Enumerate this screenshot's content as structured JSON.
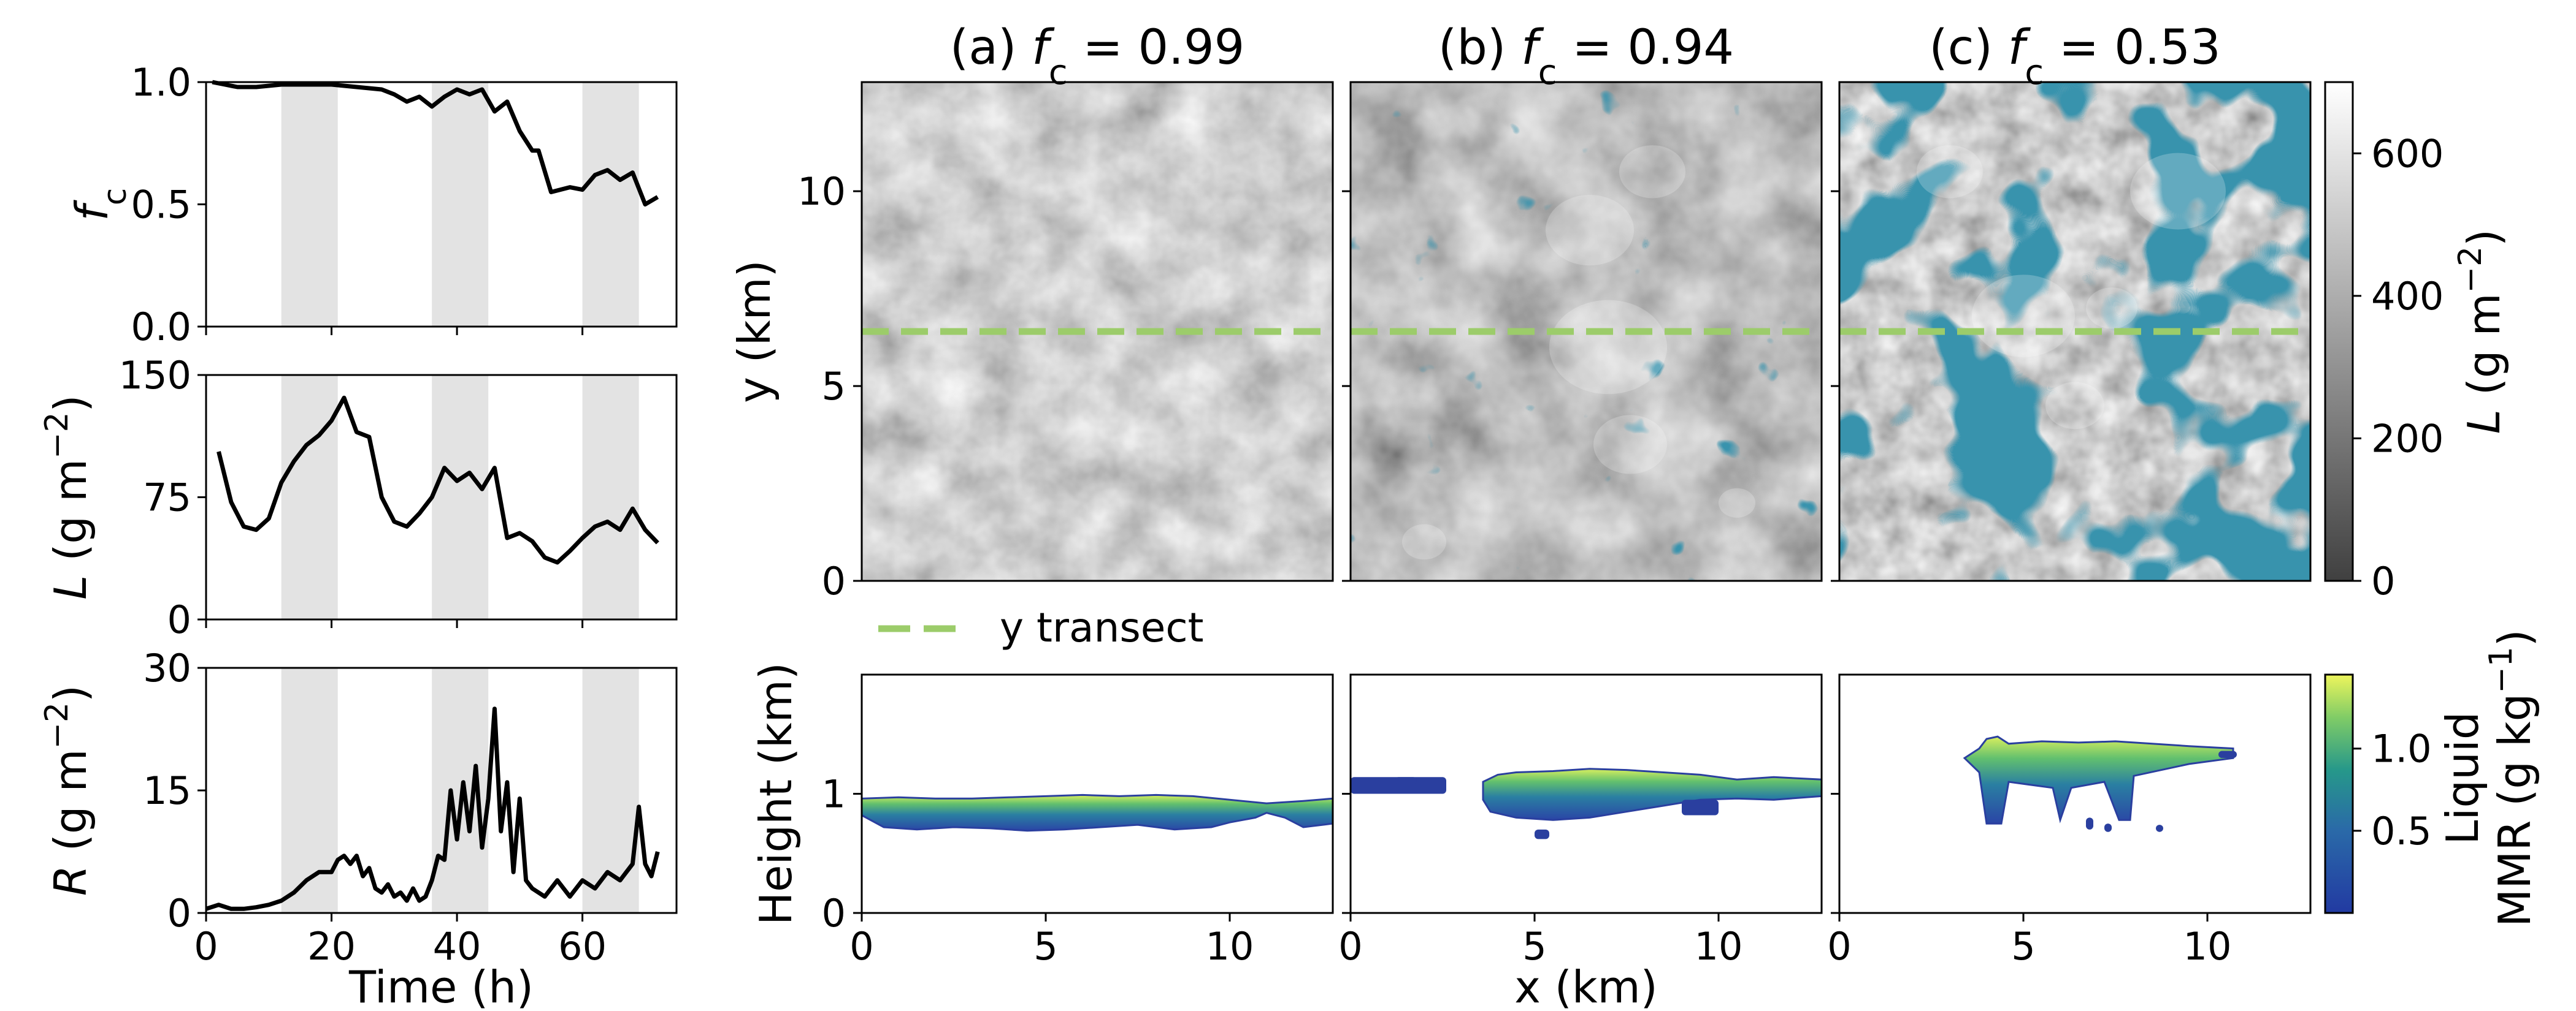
{
  "colors": {
    "line": "#000000",
    "shade": "#e3e3e3",
    "clear_sky": "#0a4a6b",
    "transect": "#9ccc6a",
    "liquid_low": "#2a3f9f",
    "liquid_mid": "#23908c",
    "liquid_high": "#e8f45a"
  },
  "chart_data": [
    {
      "type": "line",
      "panel": "time-series-fc",
      "ylabel": "fc",
      "ylim": [
        0,
        1.0
      ],
      "yticks": [
        "0.0",
        "0.5",
        "1.0"
      ],
      "xlim": [
        0,
        75
      ],
      "shaded_intervals": [
        [
          12,
          21
        ],
        [
          36,
          45
        ],
        [
          60,
          69
        ]
      ],
      "series": [
        {
          "x": [
            1,
            3,
            5,
            8,
            12,
            16,
            20,
            24,
            28,
            30,
            32,
            34,
            36,
            38,
            40,
            42,
            44,
            46,
            48,
            50,
            52,
            53,
            55,
            58,
            60,
            62,
            64,
            66,
            68,
            70,
            72
          ],
          "y": [
            1.0,
            0.99,
            0.98,
            0.98,
            0.99,
            0.99,
            0.99,
            0.98,
            0.97,
            0.95,
            0.92,
            0.94,
            0.9,
            0.94,
            0.97,
            0.95,
            0.97,
            0.88,
            0.92,
            0.8,
            0.72,
            0.72,
            0.55,
            0.57,
            0.56,
            0.62,
            0.64,
            0.6,
            0.63,
            0.5,
            0.53
          ]
        }
      ]
    },
    {
      "type": "line",
      "panel": "time-series-L",
      "ylabel": "L (g m⁻²)",
      "ylim": [
        0,
        150
      ],
      "yticks": [
        "0",
        "75",
        "150"
      ],
      "xlim": [
        0,
        75
      ],
      "shaded_intervals": [
        [
          12,
          21
        ],
        [
          36,
          45
        ],
        [
          60,
          69
        ]
      ],
      "series": [
        {
          "x": [
            2,
            4,
            6,
            8,
            10,
            12,
            14,
            16,
            18,
            20,
            22,
            24,
            26,
            28,
            30,
            32,
            34,
            36,
            38,
            40,
            42,
            44,
            46,
            48,
            50,
            52,
            54,
            56,
            58,
            60,
            62,
            64,
            66,
            68,
            70,
            72
          ],
          "y": [
            103,
            72,
            57,
            55,
            62,
            84,
            97,
            107,
            113,
            122,
            136,
            115,
            112,
            75,
            60,
            57,
            65,
            75,
            93,
            85,
            90,
            80,
            93,
            50,
            53,
            48,
            38,
            35,
            42,
            50,
            57,
            60,
            55,
            68,
            55,
            47
          ]
        }
      ]
    },
    {
      "type": "line",
      "panel": "time-series-R",
      "ylabel": "R (g m⁻²)",
      "xlabel": "Time (h)",
      "ylim": [
        0,
        30
      ],
      "yticks": [
        "0",
        "15",
        "30"
      ],
      "xlim": [
        0,
        75
      ],
      "xticks": [
        "0",
        "20",
        "40",
        "60"
      ],
      "shaded_intervals": [
        [
          12,
          21
        ],
        [
          36,
          45
        ],
        [
          60,
          69
        ]
      ],
      "series": [
        {
          "x": [
            0,
            2,
            4,
            6,
            8,
            10,
            12,
            14,
            16,
            18,
            20,
            21,
            22,
            23,
            24,
            25,
            26,
            27,
            28,
            29,
            30,
            31,
            32,
            33,
            34,
            35,
            36,
            37,
            38,
            39,
            40,
            41,
            42,
            43,
            44,
            45,
            46,
            47,
            48,
            49,
            50,
            51,
            52,
            54,
            56,
            58,
            60,
            62,
            64,
            66,
            68,
            69,
            70,
            71,
            72
          ],
          "y": [
            0.5,
            1,
            0.5,
            0.5,
            0.7,
            1,
            1.5,
            2.5,
            4,
            5,
            5,
            6.5,
            7,
            6,
            7,
            4.5,
            5.5,
            3,
            2.5,
            3.5,
            2,
            2.5,
            1.5,
            3,
            1.5,
            2,
            4,
            7,
            6.5,
            15,
            9,
            16,
            10,
            18,
            8,
            14,
            25,
            10,
            16,
            5,
            14,
            4,
            3,
            2,
            4,
            2,
            4,
            3,
            5,
            4,
            6,
            13,
            6,
            4.5,
            7.5
          ]
        }
      ]
    },
    {
      "type": "heatmap",
      "panel": "lwp-map-a",
      "title": "(a) fc = 0.99",
      "fc": 0.99,
      "ylabel": "y (km)",
      "xlim": [
        0,
        12.8
      ],
      "ylim": [
        0,
        12.8
      ],
      "yticks": [
        "0",
        "5",
        "10"
      ],
      "transect_y": 6.4
    },
    {
      "type": "heatmap",
      "panel": "lwp-map-b",
      "title": "(b) fc = 0.94",
      "fc": 0.94,
      "xlim": [
        0,
        12.8
      ],
      "ylim": [
        0,
        12.8
      ],
      "transect_y": 6.4
    },
    {
      "type": "heatmap",
      "panel": "lwp-map-c",
      "title": "(c) fc = 0.53",
      "fc": 0.53,
      "xlim": [
        0,
        12.8
      ],
      "ylim": [
        0,
        12.8
      ],
      "transect_y": 6.4
    },
    {
      "type": "heatmap",
      "panel": "transect-a",
      "ylabel": "Height (km)",
      "xlim": [
        0,
        12.8
      ],
      "ylim": [
        0,
        2
      ],
      "xticks": [
        "0",
        "5",
        "10"
      ],
      "yticks": [
        "0",
        "1"
      ],
      "cloud_base_km": 0.72,
      "cloud_top_km": 0.98
    },
    {
      "type": "heatmap",
      "panel": "transect-b",
      "xlabel": "x (km)",
      "xlim": [
        0,
        12.8
      ],
      "ylim": [
        0,
        2
      ],
      "xticks": [
        "0",
        "5",
        "10"
      ],
      "cloud_base_km": 0.8,
      "cloud_top_km": 1.2
    },
    {
      "type": "heatmap",
      "panel": "transect-c",
      "xlim": [
        0,
        12.8
      ],
      "ylim": [
        0,
        2
      ],
      "xticks": [
        "0",
        "5",
        "10"
      ],
      "cloud_base_km": 0.75,
      "cloud_top_km": 1.48
    }
  ],
  "colorbars": {
    "lwp": {
      "label": "L (g m⁻²)",
      "ticks": [
        "0",
        "200",
        "400",
        "600"
      ],
      "range": [
        0,
        700
      ]
    },
    "liquid": {
      "label_line1": "Liquid",
      "label_line2": "MMR (g kg⁻¹)",
      "ticks": [
        "0.5",
        "1.0"
      ],
      "range": [
        0,
        1.45
      ]
    }
  },
  "legend": {
    "label": "y transect"
  }
}
